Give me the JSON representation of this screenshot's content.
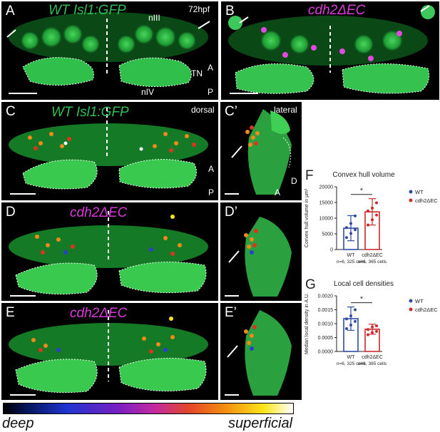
{
  "panels": {
    "A": {
      "letter": "A",
      "title": "WT Isl1:GFP",
      "time": "72hpf",
      "label_nIII": "nIII",
      "label_TN": "TN",
      "label_nIV": "nIV",
      "axis_A": "A",
      "axis_P": "P"
    },
    "B": {
      "letter": "B",
      "title": "cdh2ΔEC"
    },
    "C": {
      "letter": "C",
      "title": "WT Isl1:GFP",
      "view": "dorsal",
      "axis_A": "A",
      "axis_P": "P"
    },
    "C2": {
      "letter": "C’",
      "view": "lateral",
      "axis_D": "D",
      "axis_A": "A"
    },
    "D": {
      "letter": "D",
      "title": "cdh2ΔEC"
    },
    "D2": {
      "letter": "D’"
    },
    "E": {
      "letter": "E",
      "title": "cdh2ΔEC"
    },
    "E2": {
      "letter": "E’"
    }
  },
  "depth_scale": {
    "left": "deep",
    "right": "superficial"
  },
  "colors": {
    "wt": "#2f4aa3",
    "cdh2": "#cc2a2a",
    "gfp": "#2fbf59",
    "magenta": "#d93ad9"
  },
  "chart_data": [
    {
      "panel": "F",
      "type": "bar",
      "title": "Convex hull volume",
      "ylabel": "Convex hull volume in μm³",
      "ylim": [
        0,
        20000
      ],
      "yticks": [
        "0",
        "5000",
        "10000",
        "15000",
        "20000"
      ],
      "categories": [
        "WT",
        "cdh2ΔEC"
      ],
      "sublabels": [
        "n=6, 325 cells",
        "n=6, 365 cells"
      ],
      "values": [
        6800,
        12000
      ],
      "sd": [
        4000,
        4200
      ],
      "points": [
        [
          3800,
          5100,
          6300,
          7000,
          8300,
          10700
        ],
        [
          7800,
          9500,
          11000,
          12300,
          13200,
          14900
        ]
      ],
      "legend": [
        "WT",
        "cdh2ΔEC"
      ],
      "significance": "*"
    },
    {
      "panel": "G",
      "type": "bar",
      "title": "Local cell densities",
      "ylabel": "Median local density in A.U.",
      "ylim": [
        0,
        0.002
      ],
      "yticks": [
        "0.0000",
        "0.0005",
        "0.0010",
        "0.0015",
        "0.0020"
      ],
      "categories": [
        "WT",
        "cdh2ΔEC"
      ],
      "sublabels": [
        "n=6, 325 cells",
        "n=6, 365 cells"
      ],
      "values": [
        0.00118,
        0.0008
      ],
      "sd": [
        0.00042,
        0.00018
      ],
      "points": [
        [
          0.00082,
          0.00095,
          0.00108,
          0.00117,
          0.00128,
          0.0015
        ],
        [
          0.0006,
          0.00068,
          0.00072,
          0.00079,
          0.00088,
          0.00092
        ]
      ],
      "legend": [
        "WT",
        "cdh2ΔEC"
      ],
      "significance": "*"
    }
  ]
}
